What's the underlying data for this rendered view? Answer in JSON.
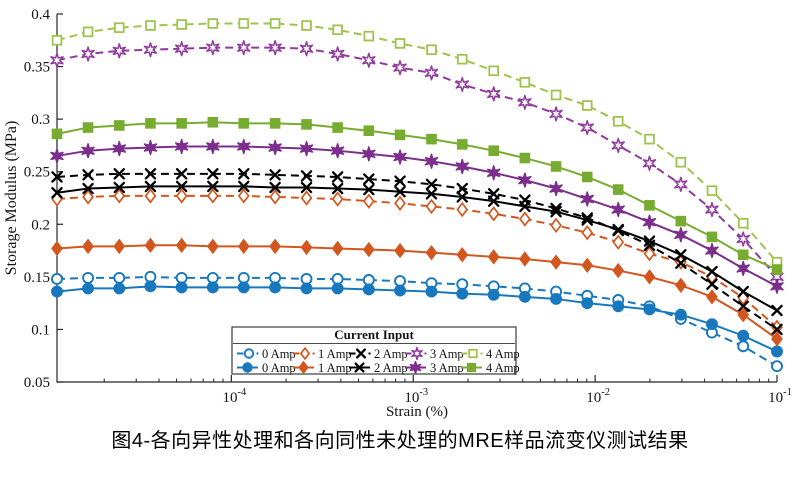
{
  "caption": "图4-各向异性处理和各向同性未处理的MRE样品流变仪测试结果",
  "chart_data": {
    "type": "line",
    "title": "",
    "xlabel": "Strain (%)",
    "ylabel": "Storage Modulus (MPa)",
    "x_scale": "log",
    "grid": false,
    "xlim": [
      1.1e-05,
      0.1
    ],
    "ylim": [
      0.05,
      0.4
    ],
    "axis_color": "#262626",
    "background": "#ffffff",
    "y_ticks": [
      {
        "value": 0.05,
        "label": "0.05"
      },
      {
        "value": 0.1,
        "label": "0.1"
      },
      {
        "value": 0.15,
        "label": "0.15"
      },
      {
        "value": 0.2,
        "label": "0.2"
      },
      {
        "value": 0.25,
        "label": "0.25"
      },
      {
        "value": 0.3,
        "label": "0.3"
      },
      {
        "value": 0.35,
        "label": "0.35"
      },
      {
        "value": 0.4,
        "label": "0.4"
      }
    ],
    "x_ticks": [
      {
        "value": 0.0001,
        "base": "10",
        "exp": "-4"
      },
      {
        "value": 0.001,
        "base": "10",
        "exp": "-3"
      },
      {
        "value": 0.01,
        "base": "10",
        "exp": "-2"
      },
      {
        "value": 0.1,
        "base": "10",
        "exp": "-1"
      }
    ],
    "legend": {
      "title": "Current Input",
      "position": "south-inside",
      "border_color": "#4a4a4a"
    },
    "x": [
      1.1e-05,
      1.63e-05,
      2.42e-05,
      3.59e-05,
      5.33e-05,
      7.91e-05,
      0.000117,
      0.000174,
      0.000259,
      0.000384,
      0.00057,
      0.000846,
      0.00126,
      0.00186,
      0.00277,
      0.00411,
      0.0061,
      0.00905,
      0.0134,
      0.0199,
      0.0296,
      0.0439,
      0.0652,
      0.1
    ],
    "series": [
      {
        "name": "0 Amp",
        "line_style": "dashed",
        "marker": "circle",
        "marker_fill": "open",
        "color": "#1878BE",
        "values": [
          0.148,
          0.149,
          0.149,
          0.15,
          0.149,
          0.149,
          0.149,
          0.149,
          0.148,
          0.148,
          0.147,
          0.146,
          0.144,
          0.143,
          0.141,
          0.139,
          0.136,
          0.132,
          0.128,
          0.122,
          0.11,
          0.097,
          0.084,
          0.065
        ]
      },
      {
        "name": "1 Amp",
        "line_style": "dashed",
        "marker": "diamond",
        "marker_fill": "open",
        "color": "#D2571E",
        "values": [
          0.224,
          0.226,
          0.227,
          0.227,
          0.227,
          0.227,
          0.227,
          0.226,
          0.225,
          0.224,
          0.222,
          0.22,
          0.217,
          0.214,
          0.21,
          0.205,
          0.199,
          0.192,
          0.183,
          0.172,
          0.164,
          0.15,
          0.13,
          0.102
        ]
      },
      {
        "name": "2 Amp",
        "line_style": "dashed",
        "marker": "x",
        "marker_fill": "open",
        "color": "#000000",
        "values": [
          0.245,
          0.247,
          0.248,
          0.248,
          0.248,
          0.248,
          0.248,
          0.247,
          0.246,
          0.245,
          0.243,
          0.241,
          0.238,
          0.234,
          0.229,
          0.223,
          0.215,
          0.206,
          0.194,
          0.18,
          0.163,
          0.143,
          0.122,
          0.1
        ]
      },
      {
        "name": "3 Amp",
        "line_style": "dashed",
        "marker": "hexagram",
        "marker_fill": "open",
        "color": "#913A9E",
        "values": [
          0.356,
          0.362,
          0.365,
          0.366,
          0.367,
          0.368,
          0.368,
          0.368,
          0.367,
          0.362,
          0.356,
          0.349,
          0.344,
          0.333,
          0.324,
          0.316,
          0.305,
          0.292,
          0.275,
          0.258,
          0.238,
          0.214,
          0.186,
          0.15
        ]
      },
      {
        "name": "4 Amp",
        "line_style": "dashed",
        "marker": "square",
        "marker_fill": "open",
        "color": "#A0C24E",
        "values": [
          0.375,
          0.383,
          0.387,
          0.389,
          0.39,
          0.391,
          0.391,
          0.391,
          0.389,
          0.385,
          0.379,
          0.372,
          0.366,
          0.357,
          0.346,
          0.335,
          0.323,
          0.313,
          0.298,
          0.281,
          0.259,
          0.232,
          0.201,
          0.164
        ]
      },
      {
        "name": "0 Amp",
        "line_style": "solid",
        "marker": "circle",
        "marker_fill": "filled",
        "color": "#1878BE",
        "values": [
          0.136,
          0.139,
          0.139,
          0.141,
          0.14,
          0.14,
          0.14,
          0.14,
          0.139,
          0.139,
          0.138,
          0.137,
          0.136,
          0.134,
          0.133,
          0.131,
          0.129,
          0.125,
          0.122,
          0.119,
          0.114,
          0.105,
          0.094,
          0.079
        ]
      },
      {
        "name": "1 Amp",
        "line_style": "solid",
        "marker": "diamond",
        "marker_fill": "filled",
        "color": "#D2571E",
        "values": [
          0.177,
          0.179,
          0.179,
          0.18,
          0.18,
          0.179,
          0.179,
          0.179,
          0.178,
          0.177,
          0.176,
          0.175,
          0.173,
          0.171,
          0.169,
          0.167,
          0.164,
          0.161,
          0.156,
          0.15,
          0.142,
          0.131,
          0.114,
          0.091
        ]
      },
      {
        "name": "2 Amp",
        "line_style": "solid",
        "marker": "x",
        "marker_fill": "filled",
        "color": "#000000",
        "values": [
          0.23,
          0.234,
          0.235,
          0.236,
          0.236,
          0.236,
          0.236,
          0.235,
          0.235,
          0.234,
          0.233,
          0.231,
          0.229,
          0.226,
          0.222,
          0.217,
          0.212,
          0.204,
          0.195,
          0.184,
          0.171,
          0.155,
          0.136,
          0.118
        ]
      },
      {
        "name": "3 Amp",
        "line_style": "solid",
        "marker": "hexagram",
        "marker_fill": "filled",
        "color": "#7C2E8C",
        "values": [
          0.265,
          0.27,
          0.272,
          0.273,
          0.274,
          0.274,
          0.274,
          0.273,
          0.272,
          0.27,
          0.267,
          0.264,
          0.26,
          0.255,
          0.249,
          0.242,
          0.234,
          0.224,
          0.214,
          0.202,
          0.19,
          0.175,
          0.158,
          0.141
        ]
      },
      {
        "name": "4 Amp",
        "line_style": "solid",
        "marker": "square",
        "marker_fill": "filled",
        "color": "#77AC30",
        "values": [
          0.286,
          0.292,
          0.294,
          0.296,
          0.296,
          0.297,
          0.296,
          0.296,
          0.295,
          0.292,
          0.289,
          0.285,
          0.281,
          0.276,
          0.27,
          0.263,
          0.255,
          0.245,
          0.233,
          0.218,
          0.203,
          0.188,
          0.171,
          0.157
        ]
      }
    ]
  }
}
